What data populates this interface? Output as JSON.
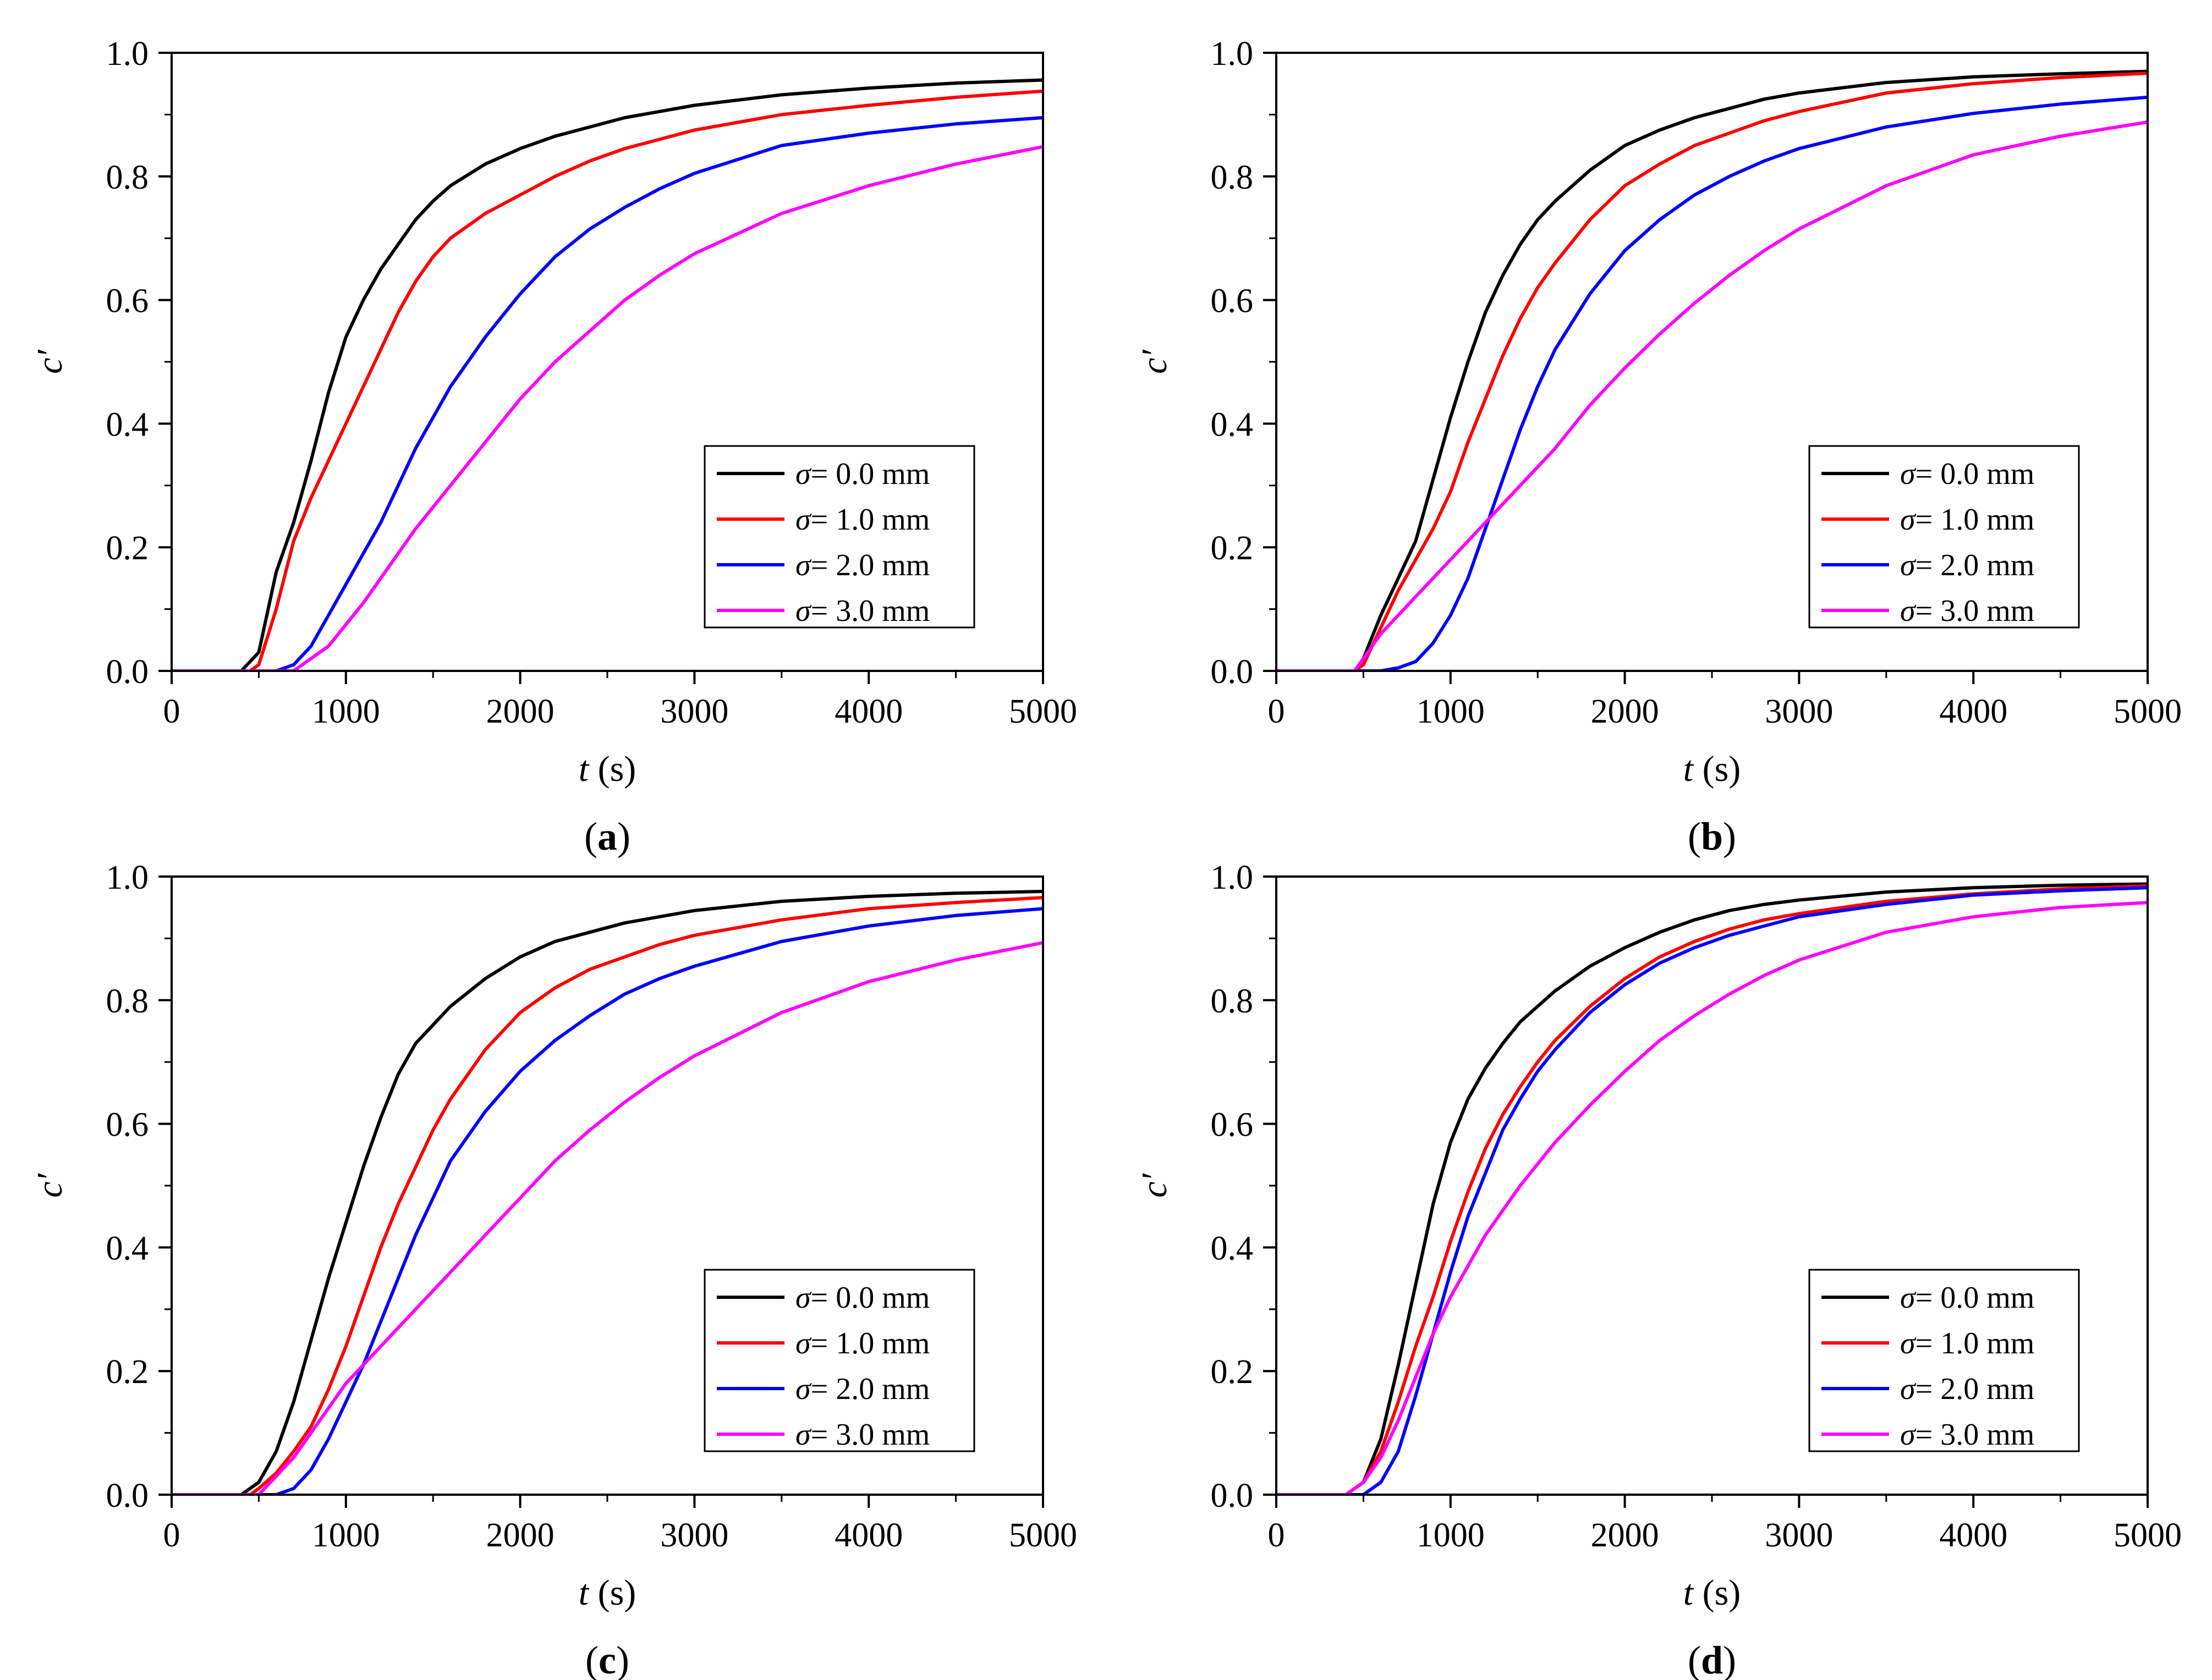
{
  "chart_data": [
    {
      "type": "line",
      "panel": "a",
      "panel_label_prefix": "(",
      "panel_label_letter": "a",
      "panel_label_suffix": ")",
      "xlabel_var": "t",
      "xlabel_unit": " (s)",
      "ylabel": "c′",
      "xlim": [
        0,
        5000
      ],
      "ylim": [
        0,
        1.0
      ],
      "xticks": [
        "0",
        "1000",
        "2000",
        "3000",
        "4000",
        "5000"
      ],
      "yticks": [
        "0.0",
        "0.2",
        "0.4",
        "0.6",
        "0.8",
        "1.0"
      ],
      "legend": "bottom-right",
      "series": [
        {
          "name": "σ= 0.0 mm",
          "sym": "σ",
          "rest": "= 0.0 mm",
          "color": "#000000",
          "x": [
            0,
            400,
            500,
            600,
            700,
            800,
            900,
            1000,
            1100,
            1200,
            1300,
            1400,
            1500,
            1600,
            1800,
            2000,
            2200,
            2400,
            2600,
            2800,
            3000,
            3500,
            4000,
            4500,
            5000
          ],
          "y": [
            0,
            0,
            0.03,
            0.16,
            0.24,
            0.34,
            0.45,
            0.54,
            0.6,
            0.65,
            0.69,
            0.73,
            0.76,
            0.785,
            0.82,
            0.845,
            0.865,
            0.88,
            0.895,
            0.905,
            0.915,
            0.932,
            0.943,
            0.951,
            0.956
          ]
        },
        {
          "name": "σ= 1.0 mm",
          "sym": "σ",
          "rest": "= 1.0 mm",
          "color": "#ff0000",
          "x": [
            0,
            450,
            500,
            600,
            700,
            800,
            900,
            1000,
            1100,
            1200,
            1300,
            1400,
            1500,
            1600,
            1800,
            2000,
            2200,
            2400,
            2600,
            2800,
            3000,
            3500,
            4000,
            4500,
            5000
          ],
          "y": [
            0,
            0,
            0.01,
            0.1,
            0.21,
            0.28,
            0.34,
            0.4,
            0.46,
            0.52,
            0.58,
            0.63,
            0.67,
            0.7,
            0.74,
            0.77,
            0.8,
            0.825,
            0.845,
            0.86,
            0.875,
            0.9,
            0.915,
            0.928,
            0.938
          ]
        },
        {
          "name": "σ= 2.0 mm",
          "sym": "σ",
          "rest": "= 2.0 mm",
          "color": "#0000ff",
          "x": [
            0,
            600,
            700,
            800,
            900,
            1000,
            1100,
            1200,
            1400,
            1600,
            1800,
            2000,
            2200,
            2400,
            2600,
            2800,
            3000,
            3500,
            4000,
            4500,
            5000
          ],
          "y": [
            0,
            0,
            0.01,
            0.04,
            0.09,
            0.14,
            0.19,
            0.24,
            0.36,
            0.46,
            0.54,
            0.61,
            0.67,
            0.715,
            0.75,
            0.78,
            0.805,
            0.85,
            0.87,
            0.885,
            0.895
          ]
        },
        {
          "name": "σ= 3.0 mm",
          "sym": "σ",
          "rest": "= 3.0 mm",
          "color": "#ff00ff",
          "x": [
            0,
            700,
            800,
            900,
            1000,
            1100,
            1200,
            1400,
            1600,
            1800,
            2000,
            2200,
            2400,
            2600,
            2800,
            3000,
            3500,
            4000,
            4500,
            5000
          ],
          "y": [
            0,
            0,
            0.02,
            0.04,
            0.075,
            0.11,
            0.15,
            0.23,
            0.3,
            0.37,
            0.44,
            0.5,
            0.55,
            0.6,
            0.64,
            0.675,
            0.74,
            0.785,
            0.82,
            0.848
          ]
        }
      ]
    },
    {
      "type": "line",
      "panel": "b",
      "panel_label_prefix": "(",
      "panel_label_letter": "b",
      "panel_label_suffix": ")",
      "xlabel_var": "t",
      "xlabel_unit": " (s)",
      "ylabel": "c′",
      "xlim": [
        0,
        5000
      ],
      "ylim": [
        0,
        1.0
      ],
      "xticks": [
        "0",
        "1000",
        "2000",
        "3000",
        "4000",
        "5000"
      ],
      "yticks": [
        "0.0",
        "0.2",
        "0.4",
        "0.6",
        "0.8",
        "1.0"
      ],
      "legend": "bottom-right",
      "series": [
        {
          "name": "σ= 0.0 mm",
          "sym": "σ",
          "rest": "= 0.0 mm",
          "color": "#000000",
          "x": [
            0,
            450,
            500,
            600,
            700,
            800,
            900,
            1000,
            1100,
            1200,
            1300,
            1400,
            1500,
            1600,
            1800,
            2000,
            2200,
            2400,
            2600,
            2800,
            3000,
            3500,
            4000,
            4500,
            5000
          ],
          "y": [
            0,
            0,
            0.02,
            0.09,
            0.15,
            0.21,
            0.31,
            0.41,
            0.5,
            0.58,
            0.64,
            0.69,
            0.73,
            0.76,
            0.81,
            0.85,
            0.875,
            0.895,
            0.91,
            0.925,
            0.935,
            0.952,
            0.961,
            0.966,
            0.97
          ]
        },
        {
          "name": "σ= 1.0 mm",
          "sym": "σ",
          "rest": "= 1.0 mm",
          "color": "#ff0000",
          "x": [
            0,
            450,
            500,
            600,
            700,
            800,
            900,
            1000,
            1100,
            1200,
            1300,
            1400,
            1500,
            1600,
            1800,
            2000,
            2200,
            2400,
            2600,
            2800,
            3000,
            3500,
            4000,
            4500,
            5000
          ],
          "y": [
            0,
            0,
            0.01,
            0.07,
            0.13,
            0.18,
            0.23,
            0.29,
            0.37,
            0.44,
            0.51,
            0.57,
            0.62,
            0.66,
            0.73,
            0.785,
            0.82,
            0.85,
            0.87,
            0.89,
            0.905,
            0.935,
            0.95,
            0.96,
            0.967
          ]
        },
        {
          "name": "σ= 2.0 mm",
          "sym": "σ",
          "rest": "= 2.0 mm",
          "color": "#0000ff",
          "x": [
            0,
            600,
            700,
            800,
            900,
            1000,
            1100,
            1200,
            1300,
            1400,
            1500,
            1600,
            1800,
            2000,
            2200,
            2400,
            2600,
            2800,
            3000,
            3500,
            4000,
            4500,
            5000
          ],
          "y": [
            0,
            0,
            0.005,
            0.015,
            0.045,
            0.09,
            0.15,
            0.23,
            0.31,
            0.39,
            0.46,
            0.52,
            0.61,
            0.68,
            0.73,
            0.77,
            0.8,
            0.825,
            0.845,
            0.88,
            0.902,
            0.917,
            0.928
          ]
        },
        {
          "name": "σ= 3.0 mm",
          "sym": "σ",
          "rest": "= 3.0 mm",
          "color": "#ff00ff",
          "x": [
            0,
            450,
            500,
            600,
            700,
            800,
            900,
            1000,
            1200,
            1400,
            1600,
            1800,
            2000,
            2200,
            2400,
            2600,
            2800,
            3000,
            3500,
            4000,
            4500,
            5000
          ],
          "y": [
            0,
            0,
            0.02,
            0.06,
            0.09,
            0.12,
            0.15,
            0.18,
            0.24,
            0.3,
            0.36,
            0.43,
            0.49,
            0.545,
            0.595,
            0.64,
            0.68,
            0.715,
            0.785,
            0.835,
            0.865,
            0.888
          ]
        }
      ]
    },
    {
      "type": "line",
      "panel": "c",
      "panel_label_prefix": "(",
      "panel_label_letter": "c",
      "panel_label_suffix": ")",
      "xlabel_var": "t",
      "xlabel_unit": " (s)",
      "ylabel": "c′",
      "xlim": [
        0,
        5000
      ],
      "ylim": [
        0,
        1.0
      ],
      "xticks": [
        "0",
        "1000",
        "2000",
        "3000",
        "4000",
        "5000"
      ],
      "yticks": [
        "0.0",
        "0.2",
        "0.4",
        "0.6",
        "0.8",
        "1.0"
      ],
      "legend": "bottom-right",
      "series": [
        {
          "name": "σ= 0.0 mm",
          "sym": "σ",
          "rest": "= 0.0 mm",
          "color": "#000000",
          "x": [
            0,
            400,
            500,
            600,
            700,
            800,
            900,
            1000,
            1100,
            1200,
            1300,
            1400,
            1500,
            1600,
            1800,
            2000,
            2200,
            2400,
            2600,
            2800,
            3000,
            3500,
            4000,
            4500,
            5000
          ],
          "y": [
            0,
            0,
            0.02,
            0.07,
            0.15,
            0.25,
            0.35,
            0.44,
            0.53,
            0.61,
            0.68,
            0.73,
            0.76,
            0.79,
            0.835,
            0.87,
            0.895,
            0.91,
            0.925,
            0.935,
            0.945,
            0.96,
            0.968,
            0.973,
            0.976
          ]
        },
        {
          "name": "σ= 1.0 mm",
          "sym": "σ",
          "rest": "= 1.0 mm",
          "color": "#ff0000",
          "x": [
            0,
            450,
            500,
            600,
            700,
            800,
            900,
            1000,
            1100,
            1200,
            1300,
            1400,
            1500,
            1600,
            1800,
            2000,
            2200,
            2400,
            2600,
            2800,
            3000,
            3500,
            4000,
            4500,
            5000
          ],
          "y": [
            0,
            0,
            0.01,
            0.035,
            0.07,
            0.11,
            0.17,
            0.24,
            0.32,
            0.4,
            0.47,
            0.53,
            0.59,
            0.64,
            0.72,
            0.78,
            0.82,
            0.85,
            0.87,
            0.89,
            0.905,
            0.93,
            0.948,
            0.958,
            0.966
          ]
        },
        {
          "name": "σ= 2.0 mm",
          "sym": "σ",
          "rest": "= 2.0 mm",
          "color": "#0000ff",
          "x": [
            0,
            600,
            700,
            800,
            900,
            1000,
            1100,
            1200,
            1300,
            1400,
            1500,
            1600,
            1800,
            2000,
            2200,
            2400,
            2600,
            2800,
            3000,
            3500,
            4000,
            4500,
            5000
          ],
          "y": [
            0,
            0,
            0.01,
            0.04,
            0.09,
            0.15,
            0.21,
            0.28,
            0.35,
            0.42,
            0.48,
            0.54,
            0.62,
            0.685,
            0.735,
            0.775,
            0.81,
            0.835,
            0.855,
            0.895,
            0.92,
            0.937,
            0.948
          ]
        },
        {
          "name": "σ= 3.0 mm",
          "sym": "σ",
          "rest": "= 3.0 mm",
          "color": "#ff00ff",
          "x": [
            0,
            500,
            600,
            700,
            800,
            900,
            1000,
            1100,
            1200,
            1400,
            1600,
            1800,
            2000,
            2200,
            2400,
            2600,
            2800,
            3000,
            3500,
            4000,
            4500,
            5000
          ],
          "y": [
            0,
            0,
            0.03,
            0.06,
            0.1,
            0.14,
            0.18,
            0.21,
            0.24,
            0.3,
            0.36,
            0.42,
            0.48,
            0.54,
            0.59,
            0.635,
            0.675,
            0.71,
            0.78,
            0.83,
            0.865,
            0.893
          ]
        }
      ]
    },
    {
      "type": "line",
      "panel": "d",
      "panel_label_prefix": "(",
      "panel_label_letter": "d",
      "panel_label_suffix": ")",
      "xlabel_var": "t",
      "xlabel_unit": " (s)",
      "ylabel": "c′",
      "xlim": [
        0,
        5000
      ],
      "ylim": [
        0,
        1.0
      ],
      "xticks": [
        "0",
        "1000",
        "2000",
        "3000",
        "4000",
        "5000"
      ],
      "yticks": [
        "0.0",
        "0.2",
        "0.4",
        "0.6",
        "0.8",
        "1.0"
      ],
      "legend": "bottom-right",
      "series": [
        {
          "name": "σ= 0.0 mm",
          "sym": "σ",
          "rest": "= 0.0 mm",
          "color": "#000000",
          "x": [
            0,
            400,
            500,
            600,
            700,
            800,
            900,
            1000,
            1100,
            1200,
            1300,
            1400,
            1500,
            1600,
            1800,
            2000,
            2200,
            2400,
            2600,
            2800,
            3000,
            3500,
            4000,
            4500,
            5000
          ],
          "y": [
            0,
            0,
            0.02,
            0.09,
            0.21,
            0.34,
            0.47,
            0.57,
            0.64,
            0.69,
            0.73,
            0.765,
            0.79,
            0.815,
            0.855,
            0.885,
            0.91,
            0.93,
            0.945,
            0.955,
            0.962,
            0.975,
            0.982,
            0.986,
            0.988
          ]
        },
        {
          "name": "σ= 1.0 mm",
          "sym": "σ",
          "rest": "= 1.0 mm",
          "color": "#ff0000",
          "x": [
            0,
            400,
            500,
            600,
            700,
            800,
            900,
            1000,
            1100,
            1200,
            1300,
            1400,
            1500,
            1600,
            1800,
            2000,
            2200,
            2400,
            2600,
            2800,
            3000,
            3500,
            4000,
            4500,
            5000
          ],
          "y": [
            0,
            0,
            0.02,
            0.07,
            0.15,
            0.24,
            0.32,
            0.41,
            0.49,
            0.56,
            0.615,
            0.66,
            0.7,
            0.735,
            0.79,
            0.835,
            0.87,
            0.895,
            0.915,
            0.93,
            0.94,
            0.96,
            0.972,
            0.98,
            0.985
          ]
        },
        {
          "name": "σ= 2.0 mm",
          "sym": "σ",
          "rest": "= 2.0 mm",
          "color": "#0000ff",
          "x": [
            0,
            500,
            600,
            700,
            800,
            900,
            1000,
            1100,
            1200,
            1300,
            1400,
            1500,
            1600,
            1800,
            2000,
            2200,
            2400,
            2600,
            2800,
            3000,
            3500,
            4000,
            4500,
            5000
          ],
          "y": [
            0,
            0,
            0.02,
            0.07,
            0.16,
            0.26,
            0.36,
            0.45,
            0.52,
            0.59,
            0.64,
            0.685,
            0.72,
            0.78,
            0.825,
            0.86,
            0.885,
            0.905,
            0.92,
            0.935,
            0.955,
            0.97,
            0.977,
            0.982
          ]
        },
        {
          "name": "σ= 3.0 mm",
          "sym": "σ",
          "rest": "= 3.0 mm",
          "color": "#ff00ff",
          "x": [
            0,
            400,
            500,
            600,
            700,
            800,
            900,
            1000,
            1100,
            1200,
            1400,
            1600,
            1800,
            2000,
            2200,
            2400,
            2600,
            2800,
            3000,
            3500,
            4000,
            4500,
            5000
          ],
          "y": [
            0,
            0,
            0.02,
            0.06,
            0.12,
            0.19,
            0.26,
            0.32,
            0.37,
            0.42,
            0.5,
            0.57,
            0.63,
            0.685,
            0.735,
            0.775,
            0.81,
            0.84,
            0.865,
            0.91,
            0.935,
            0.95,
            0.958
          ]
        }
      ]
    }
  ]
}
